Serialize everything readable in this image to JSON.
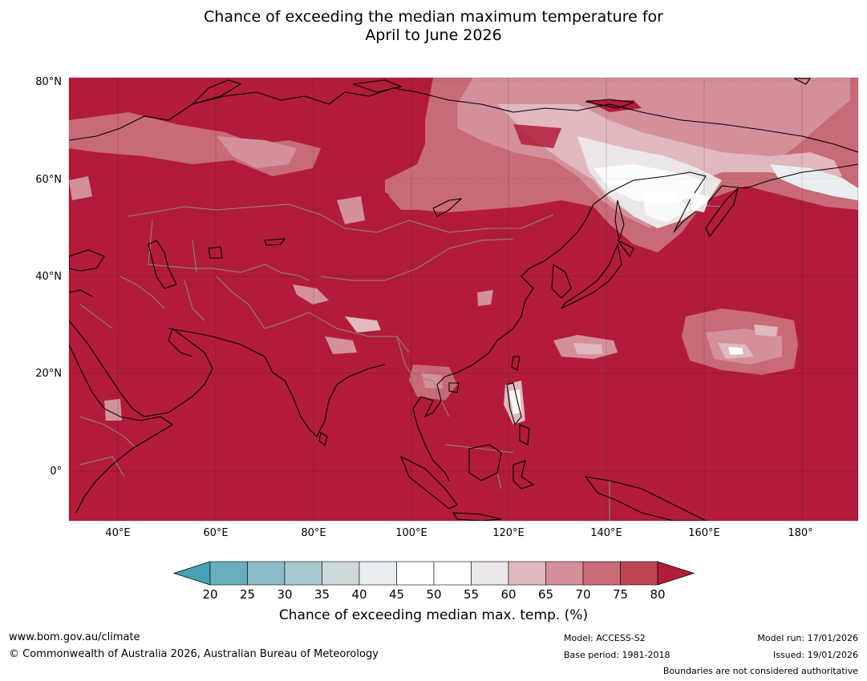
{
  "title": {
    "line1": "Chance of exceeding the median maximum temperature for",
    "line2": "April to June 2026"
  },
  "map": {
    "region": "Asia and Western Pacific",
    "background_color": "#b21c3a",
    "coastline_color": "#000000",
    "border_color": "#808080",
    "lat_labels": [
      "80°N",
      "60°N",
      "40°N",
      "20°N",
      "0°"
    ],
    "lon_labels": [
      "40°E",
      "60°E",
      "80°E",
      "100°E",
      "120°E",
      "140°E",
      "160°E",
      "180°"
    ]
  },
  "colorbar": {
    "ticks": [
      "20",
      "25",
      "30",
      "35",
      "40",
      "45",
      "50",
      "55",
      "60",
      "65",
      "70",
      "75",
      "80"
    ],
    "colors": [
      "#6aadbd",
      "#8cbac6",
      "#a9c8cd",
      "#cdd9db",
      "#e9eff0",
      "#ffffff",
      "#ffffff",
      "#ece6e8",
      "#e0b8bd",
      "#d4909a",
      "#c96a77",
      "#bd4553"
    ],
    "under_color": "#46a2b2",
    "over_color": "#b21c3a",
    "label": "Chance of exceeding median max. temp. (%)"
  },
  "footer": {
    "website": "www.bom.gov.au/climate",
    "copyright": "© Commonwealth of Australia 2026, Australian Bureau of Meteorology",
    "model": "Model: ACCESS-S2",
    "base_period": "Base period: 1981-2018",
    "model_run": "Model run: 17/01/2026",
    "issued": "Issued: 19/01/2026",
    "disclaimer": "Boundaries are not considered authoritative"
  }
}
